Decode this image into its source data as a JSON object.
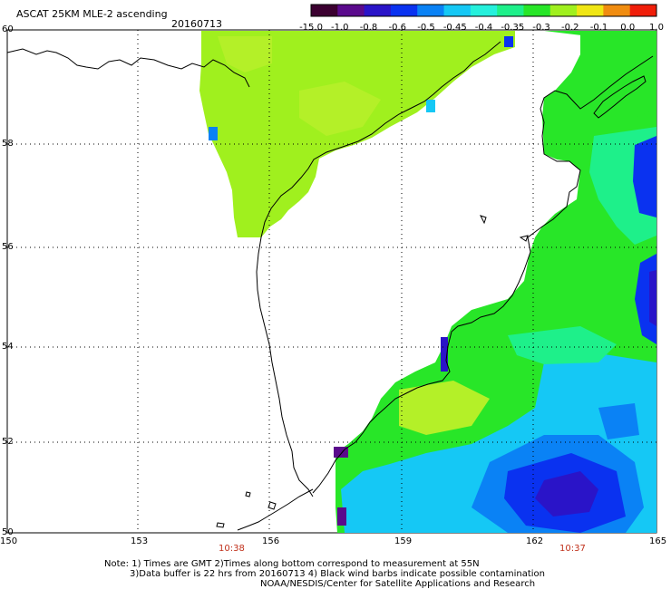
{
  "title": "ASCAT 25KM MLE-2 ascending",
  "date": "20160713",
  "colorbar": {
    "labels": [
      "-15.0",
      "-1.0",
      "-0.8",
      "-0.6",
      "-0.5",
      "-0.45",
      "-0.4",
      "-0.35",
      "-0.3",
      "-0.2",
      "-0.1",
      "0.0",
      "1.0"
    ],
    "colors": [
      "#3b0030",
      "#5a0a8c",
      "#2a14c8",
      "#0a32f0",
      "#0a82f5",
      "#15c8f5",
      "#25f0dc",
      "#1ef08a",
      "#28e628",
      "#a0f01e",
      "#f0e614",
      "#f08c10",
      "#f01e0a"
    ]
  },
  "axes": {
    "lon_ticks": [
      "150",
      "153",
      "156",
      "159",
      "162",
      "165"
    ],
    "lat_ticks": [
      "60",
      "58",
      "56",
      "54",
      "52",
      "50"
    ]
  },
  "times": [
    "10:38",
    "10:37"
  ],
  "notes": [
    "Note: 1) Times are GMT 2)Times along bottom correspond to measurement at 55N",
    "3)Data buffer is 22 hrs from 20160713 4) Black wind barbs indicate possible contamination",
    "NOAA/NESDIS/Center for Satellite Applications and Research"
  ]
}
